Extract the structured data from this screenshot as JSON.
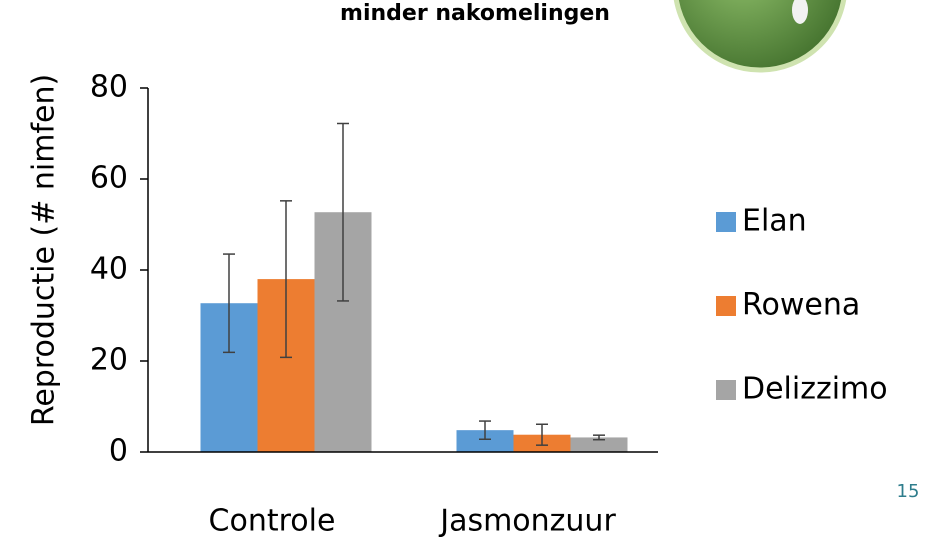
{
  "chart_data": {
    "type": "bar",
    "title": "minder nakomelingen",
    "y_label": "Reproductie  (# nimfen)",
    "categories": [
      "Controle",
      "Jasmonzuur"
    ],
    "series": [
      {
        "name": "Elan",
        "color": "#5b9bd5",
        "values": [
          32.7,
          4.8
        ],
        "errors": [
          10.8,
          2
        ]
      },
      {
        "name": "Rowena",
        "color": "#ed7d31",
        "values": [
          38,
          3.8
        ],
        "errors": [
          17.2,
          2.3
        ]
      },
      {
        "name": "Delizzimo",
        "color": "#a5a5a5",
        "values": [
          52.7,
          3.2
        ],
        "errors": [
          19.5,
          0.5
        ]
      }
    ],
    "ylim": [
      0,
      80
    ],
    "yticks": [
      0,
      20,
      40,
      60,
      80
    ],
    "page_number": "15"
  }
}
